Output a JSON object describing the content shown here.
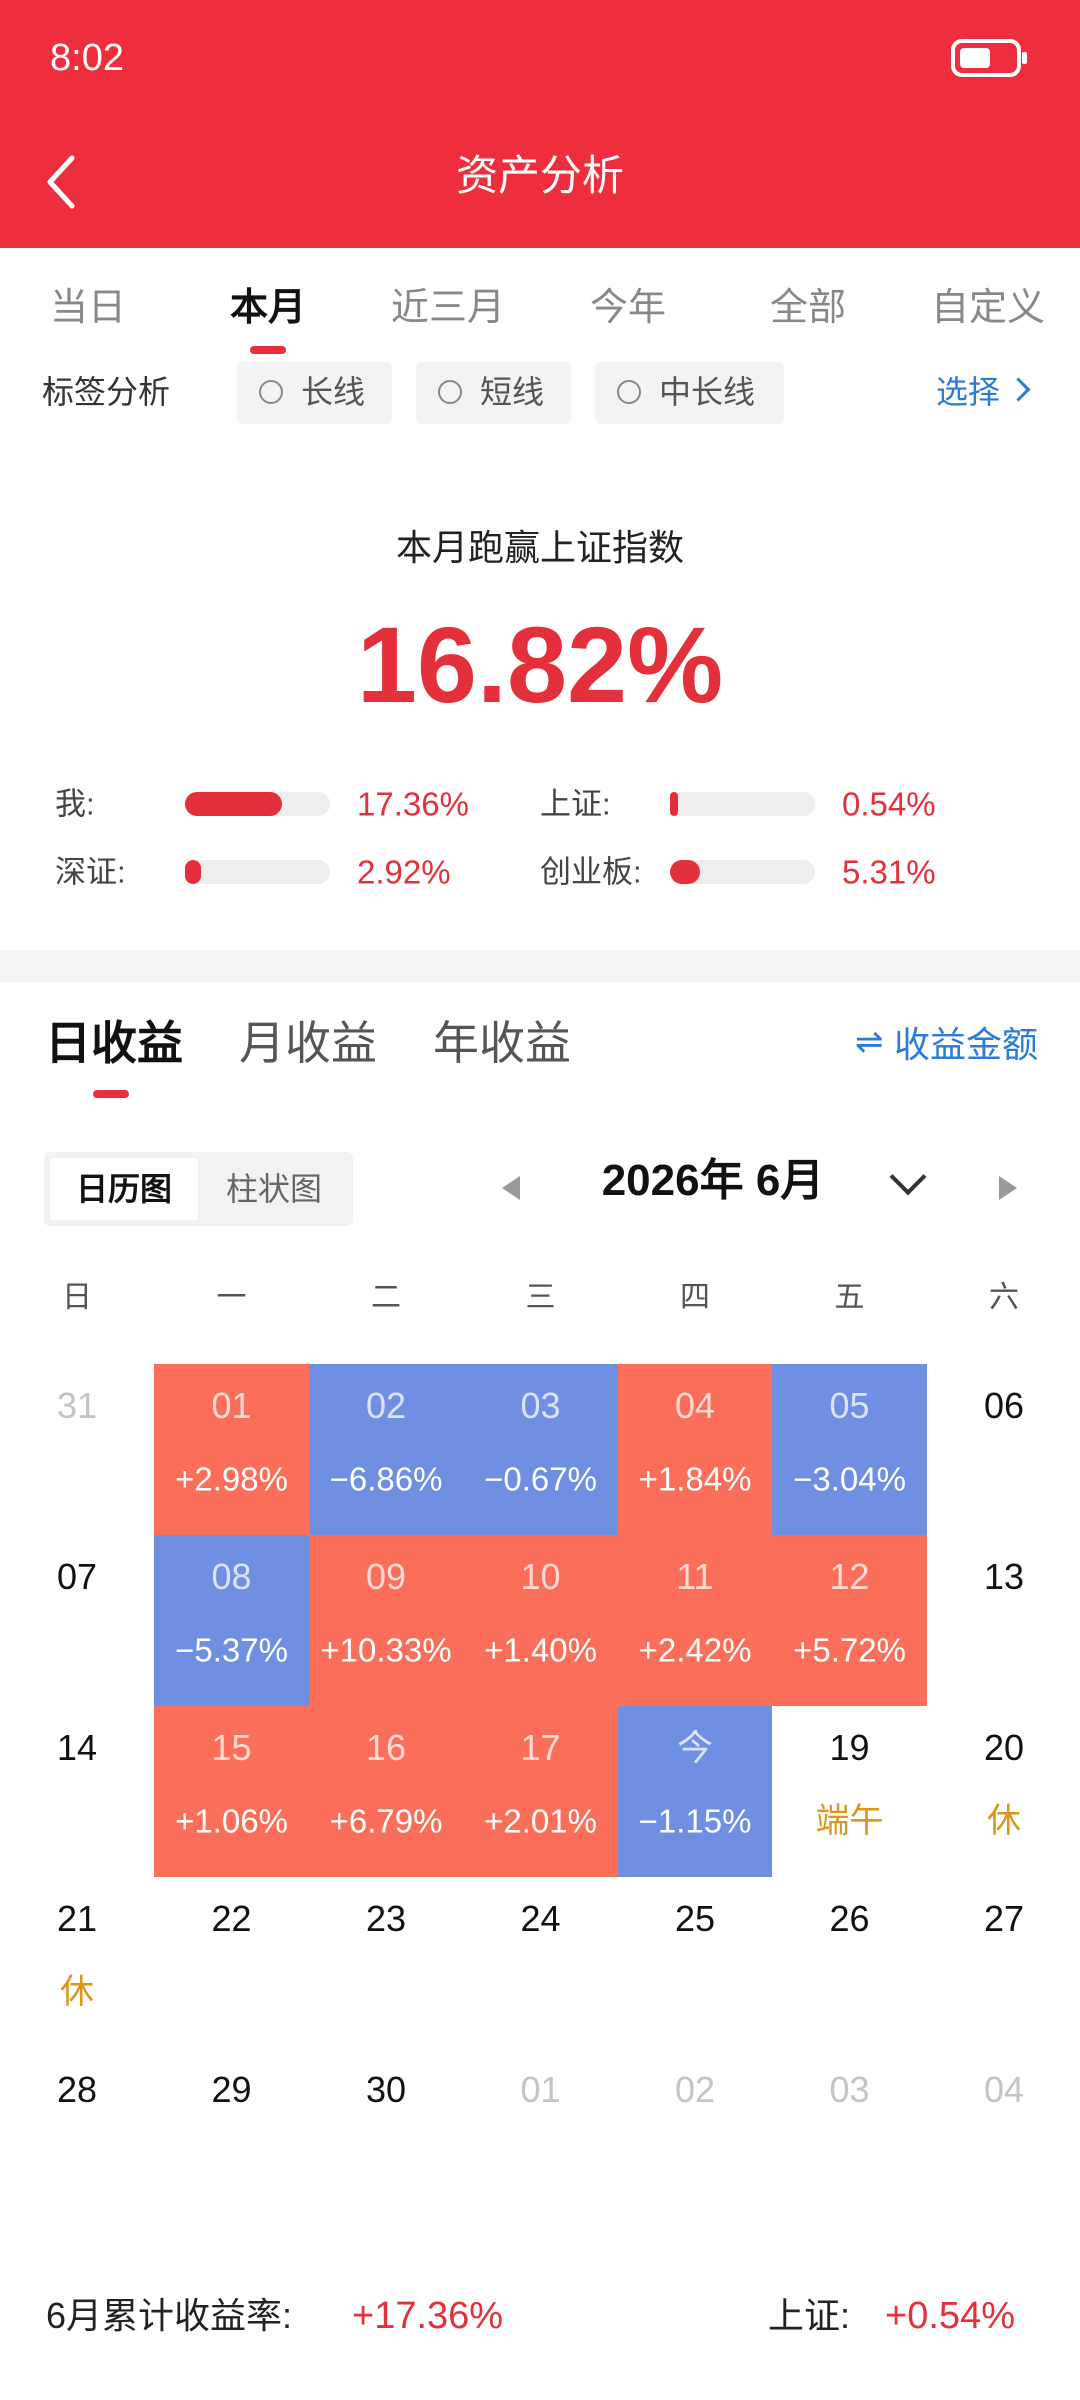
{
  "status_bar": {
    "time": "8:02"
  },
  "header": {
    "title": "资产分析"
  },
  "period_tabs": {
    "items": [
      "当日",
      "本月",
      "近三月",
      "今年",
      "全部",
      "自定义"
    ],
    "active": 1
  },
  "tag_filter": {
    "label": "标签分析",
    "options": [
      "长线",
      "短线",
      "中长线"
    ],
    "select": "选择"
  },
  "summary": {
    "title": "本月跑赢上证指数",
    "value": "16.82%"
  },
  "comparisons": [
    {
      "label": "我:",
      "value": "17.36%"
    },
    {
      "label": "上证:",
      "value": "0.54%"
    },
    {
      "label": "深证:",
      "value": "2.92%"
    },
    {
      "label": "创业板:",
      "value": "5.31%"
    }
  ],
  "return_tabs": {
    "items": [
      "日收益",
      "月收益",
      "年收益"
    ],
    "active": 0,
    "toggle": "收益金额"
  },
  "view_toggle": {
    "items": [
      "日历图",
      "柱状图"
    ],
    "active": 0
  },
  "calendar": {
    "month": "2026年 6月",
    "weekdays": [
      "日",
      "一",
      "二",
      "三",
      "四",
      "五",
      "六"
    ],
    "up_color": "#fa6e5a",
    "down_color": "#6f8fe2",
    "note_color": "#d9971c",
    "weeks": [
      [
        {
          "day": "31",
          "other_month": true
        },
        {
          "day": "01",
          "value": "+2.98%"
        },
        {
          "day": "02",
          "value": "−6.86%"
        },
        {
          "day": "03",
          "value": "−0.67%"
        },
        {
          "day": "04",
          "value": "+1.84%"
        },
        {
          "day": "05",
          "value": "−3.04%"
        },
        {
          "day": "06"
        }
      ],
      [
        {
          "day": "07"
        },
        {
          "day": "08",
          "value": "−5.37%"
        },
        {
          "day": "09",
          "value": "+10.33%"
        },
        {
          "day": "10",
          "value": "+1.40%"
        },
        {
          "day": "11",
          "value": "+2.42%"
        },
        {
          "day": "12",
          "value": "+5.72%"
        },
        {
          "day": "13"
        }
      ],
      [
        {
          "day": "14"
        },
        {
          "day": "15",
          "value": "+1.06%"
        },
        {
          "day": "16",
          "value": "+6.79%"
        },
        {
          "day": "17",
          "value": "+2.01%"
        },
        {
          "day": "今",
          "value": "−1.15%"
        },
        {
          "day": "19",
          "note": "端午"
        },
        {
          "day": "20",
          "note": "休"
        }
      ],
      [
        {
          "day": "21",
          "note": "休"
        },
        {
          "day": "22"
        },
        {
          "day": "23"
        },
        {
          "day": "24"
        },
        {
          "day": "25"
        },
        {
          "day": "26"
        },
        {
          "day": "27"
        }
      ],
      [
        {
          "day": "28"
        },
        {
          "day": "29"
        },
        {
          "day": "30"
        },
        {
          "day": "01",
          "other_month": true
        },
        {
          "day": "02",
          "other_month": true
        },
        {
          "day": "03",
          "other_month": true
        },
        {
          "day": "04",
          "other_month": true
        }
      ]
    ]
  },
  "footer": {
    "label": "6月累计收益率:",
    "value": "+17.36%",
    "index_label": "上证:",
    "index_value": "+0.54%"
  }
}
